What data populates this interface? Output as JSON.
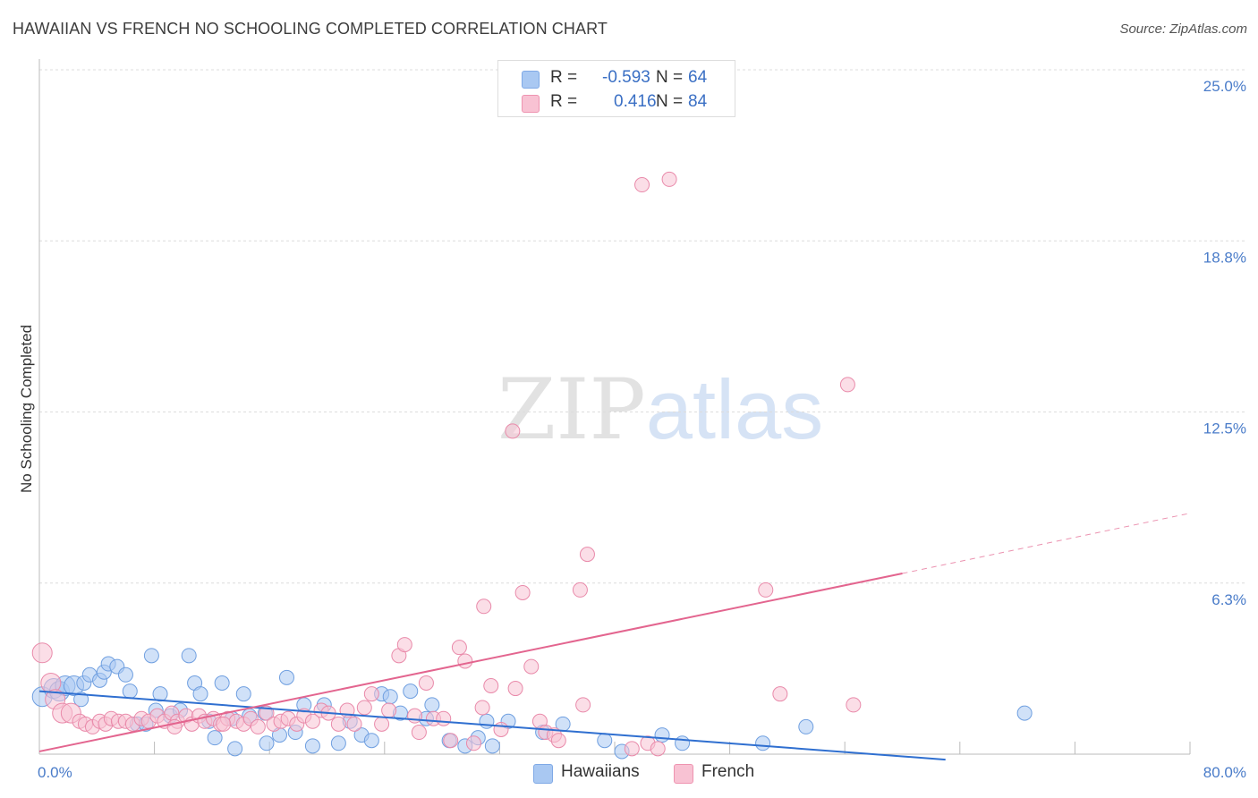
{
  "title": "HAWAIIAN VS FRENCH NO SCHOOLING COMPLETED CORRELATION CHART",
  "source": "Source: ZipAtlas.com",
  "watermark": {
    "zip": "ZIP",
    "atlas": "atlas"
  },
  "legend_top": {
    "rows": [
      {
        "r_label": "R = ",
        "r_value": "-0.593",
        "n_label": "N = ",
        "n_value": "64",
        "color": "#a9c8f2",
        "border": "#7fa9e6"
      },
      {
        "r_label": "R = ",
        "r_value": "0.416",
        "n_label": "N = ",
        "n_value": "84",
        "color": "#f8c2d3",
        "border": "#ee93b0"
      }
    ]
  },
  "legend_bottom": [
    {
      "label": "Hawaiians",
      "color": "#a9c8f2",
      "border": "#7fa9e6"
    },
    {
      "label": "French",
      "color": "#f8c2d3",
      "border": "#ee93b0"
    }
  ],
  "chart_data": {
    "type": "scatter",
    "title": "HAWAIIAN VS FRENCH NO SCHOOLING COMPLETED CORRELATION CHART",
    "xlabel": "",
    "ylabel": "No Schooling Completed",
    "xlim": [
      0,
      80
    ],
    "ylim": [
      0,
      25
    ],
    "x_tick_labels": [
      "0.0%",
      "80.0%"
    ],
    "y_tick_labels": [
      "6.3%",
      "12.5%",
      "18.8%",
      "25.0%"
    ],
    "y_ticks": [
      6.25,
      12.5,
      18.75,
      25.0
    ],
    "grid": true,
    "legend_position": "top-center",
    "colors": {
      "hawaiians": "#4a86d8",
      "french": "#e56f97"
    },
    "series": [
      {
        "name": "Hawaiians",
        "r": -0.593,
        "n": 64,
        "trend": {
          "x": [
            0,
            63
          ],
          "y": [
            2.3,
            -0.2
          ]
        },
        "points": [
          [
            0.2,
            2.1
          ],
          [
            1.0,
            2.4
          ],
          [
            1.4,
            2.3
          ],
          [
            1.8,
            2.5
          ],
          [
            2.4,
            2.5
          ],
          [
            2.9,
            2.0
          ],
          [
            3.1,
            2.6
          ],
          [
            3.5,
            2.9
          ],
          [
            4.2,
            2.7
          ],
          [
            4.5,
            3.0
          ],
          [
            4.8,
            3.3
          ],
          [
            5.4,
            3.2
          ],
          [
            6.0,
            2.9
          ],
          [
            6.3,
            2.3
          ],
          [
            6.8,
            1.1
          ],
          [
            7.4,
            1.1
          ],
          [
            7.8,
            3.6
          ],
          [
            8.1,
            1.6
          ],
          [
            8.4,
            2.2
          ],
          [
            9.1,
            1.4
          ],
          [
            9.8,
            1.6
          ],
          [
            10.4,
            3.6
          ],
          [
            10.8,
            2.6
          ],
          [
            11.2,
            2.2
          ],
          [
            11.8,
            1.2
          ],
          [
            12.2,
            0.6
          ],
          [
            12.7,
            2.6
          ],
          [
            13.4,
            1.3
          ],
          [
            13.6,
            0.2
          ],
          [
            14.2,
            2.2
          ],
          [
            14.6,
            1.4
          ],
          [
            15.7,
            1.5
          ],
          [
            15.8,
            0.4
          ],
          [
            16.7,
            0.7
          ],
          [
            17.2,
            2.8
          ],
          [
            17.8,
            0.8
          ],
          [
            18.4,
            1.8
          ],
          [
            19.0,
            0.3
          ],
          [
            19.8,
            1.8
          ],
          [
            20.8,
            0.4
          ],
          [
            21.6,
            1.2
          ],
          [
            22.4,
            0.7
          ],
          [
            23.1,
            0.5
          ],
          [
            23.8,
            2.2
          ],
          [
            24.4,
            2.1
          ],
          [
            25.1,
            1.5
          ],
          [
            25.8,
            2.3
          ],
          [
            26.9,
            1.3
          ],
          [
            27.3,
            1.8
          ],
          [
            28.5,
            0.5
          ],
          [
            29.6,
            0.3
          ],
          [
            30.5,
            0.6
          ],
          [
            31.1,
            1.2
          ],
          [
            31.5,
            0.3
          ],
          [
            32.6,
            1.2
          ],
          [
            35.0,
            0.8
          ],
          [
            36.4,
            1.1
          ],
          [
            39.3,
            0.5
          ],
          [
            40.5,
            0.1
          ],
          [
            43.3,
            0.7
          ],
          [
            44.7,
            0.4
          ],
          [
            50.3,
            0.4
          ],
          [
            53.3,
            1.0
          ],
          [
            68.5,
            1.5
          ]
        ]
      },
      {
        "name": "French",
        "r": 0.416,
        "n": 84,
        "trend": {
          "x": [
            0,
            60
          ],
          "y": [
            0.1,
            6.6
          ]
        },
        "trend_dashed": {
          "x": [
            60,
            80
          ],
          "y": [
            6.6,
            8.8
          ]
        },
        "points": [
          [
            0.2,
            3.7
          ],
          [
            0.8,
            2.6
          ],
          [
            1.1,
            2.0
          ],
          [
            1.6,
            1.5
          ],
          [
            2.2,
            1.5
          ],
          [
            2.8,
            1.2
          ],
          [
            3.2,
            1.1
          ],
          [
            3.7,
            1.0
          ],
          [
            4.2,
            1.2
          ],
          [
            4.6,
            1.1
          ],
          [
            5.0,
            1.3
          ],
          [
            5.5,
            1.2
          ],
          [
            6.0,
            1.2
          ],
          [
            6.5,
            1.1
          ],
          [
            7.1,
            1.3
          ],
          [
            7.6,
            1.2
          ],
          [
            8.2,
            1.4
          ],
          [
            8.7,
            1.2
          ],
          [
            9.2,
            1.5
          ],
          [
            9.6,
            1.2
          ],
          [
            10.2,
            1.4
          ],
          [
            10.6,
            1.1
          ],
          [
            11.1,
            1.4
          ],
          [
            11.5,
            1.2
          ],
          [
            12.1,
            1.3
          ],
          [
            12.6,
            1.1
          ],
          [
            13.1,
            1.3
          ],
          [
            13.7,
            1.2
          ],
          [
            14.2,
            1.1
          ],
          [
            14.7,
            1.3
          ],
          [
            15.2,
            1.0
          ],
          [
            15.8,
            1.5
          ],
          [
            16.3,
            1.1
          ],
          [
            16.8,
            1.2
          ],
          [
            17.3,
            1.3
          ],
          [
            17.9,
            1.1
          ],
          [
            18.4,
            1.4
          ],
          [
            19.0,
            1.2
          ],
          [
            19.6,
            1.6
          ],
          [
            20.1,
            1.5
          ],
          [
            20.8,
            1.1
          ],
          [
            21.4,
            1.6
          ],
          [
            21.9,
            1.1
          ],
          [
            22.6,
            1.7
          ],
          [
            23.1,
            2.2
          ],
          [
            23.8,
            1.1
          ],
          [
            24.3,
            1.6
          ],
          [
            25.0,
            3.6
          ],
          [
            25.4,
            4.0
          ],
          [
            26.1,
            1.4
          ],
          [
            26.4,
            0.8
          ],
          [
            26.9,
            2.6
          ],
          [
            27.4,
            1.3
          ],
          [
            28.1,
            1.3
          ],
          [
            28.6,
            0.5
          ],
          [
            29.2,
            3.9
          ],
          [
            29.6,
            3.4
          ],
          [
            30.2,
            0.4
          ],
          [
            30.8,
            1.7
          ],
          [
            30.9,
            5.4
          ],
          [
            31.4,
            2.5
          ],
          [
            32.1,
            0.9
          ],
          [
            32.9,
            11.8
          ],
          [
            33.1,
            2.4
          ],
          [
            33.6,
            5.9
          ],
          [
            34.2,
            3.2
          ],
          [
            34.8,
            1.2
          ],
          [
            35.2,
            0.8
          ],
          [
            35.8,
            0.7
          ],
          [
            36.1,
            0.5
          ],
          [
            37.6,
            6.0
          ],
          [
            37.8,
            1.8
          ],
          [
            38.1,
            7.3
          ],
          [
            41.2,
            0.2
          ],
          [
            41.9,
            20.8
          ],
          [
            42.3,
            0.4
          ],
          [
            43.8,
            21.0
          ],
          [
            50.5,
            6.0
          ],
          [
            51.5,
            2.2
          ],
          [
            56.2,
            13.5
          ],
          [
            56.6,
            1.8
          ],
          [
            12.8,
            1.1
          ],
          [
            9.4,
            1.0
          ],
          [
            43.0,
            0.2
          ]
        ]
      }
    ]
  }
}
